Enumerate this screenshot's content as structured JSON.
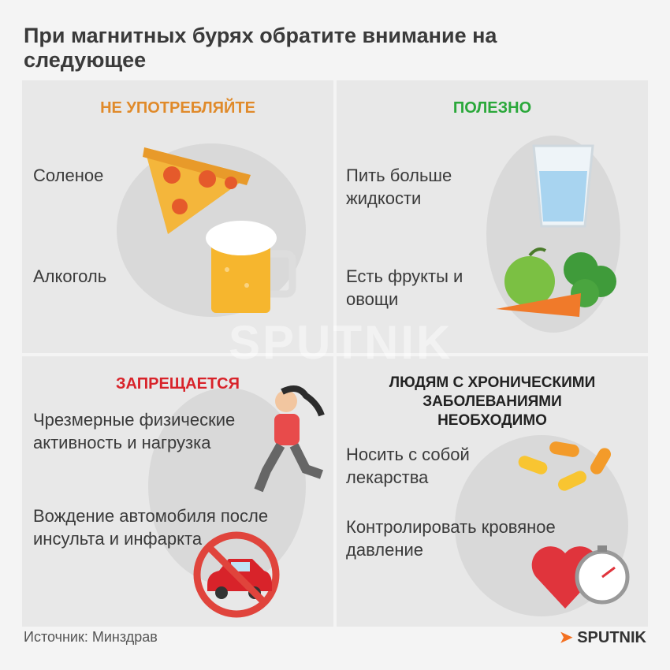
{
  "title": "При магнитных бурях обратите внимание на следующее",
  "panels": [
    {
      "heading": "НЕ УПОТРЕБЛЯЙТЕ",
      "color": "#e08a2a",
      "items": [
        "Соленое",
        "Алкоголь"
      ]
    },
    {
      "heading": "ПОЛЕЗНО",
      "color": "#2aa83a",
      "items": [
        "Пить больше жидкости",
        "Есть фрукты и овощи"
      ]
    },
    {
      "heading": "ЗАПРЕЩАЕТСЯ",
      "color": "#d8232a",
      "items": [
        "Чрезмерные физические активность и нагрузка",
        "Вождение автомобиля после инсульта и инфаркта"
      ]
    },
    {
      "heading": "ЛЮДЯМ С ХРОНИЧЕСКИМИ ЗАБОЛЕВАНИЯМИ НЕОБХОДИМО",
      "color": "#222222",
      "items": [
        "Носить с собой лекарства",
        "Контролировать кровяное давление"
      ]
    }
  ],
  "source": "Источник: Минздрав",
  "brand": "SPUTNIK",
  "watermark": "SPUTNIK",
  "icons": [
    "pizza-icon",
    "beer-icon",
    "water-glass-icon",
    "fruits-vegetables-icon",
    "runner-icon",
    "no-car-icon",
    "pills-icon",
    "heart-pressure-icon"
  ]
}
